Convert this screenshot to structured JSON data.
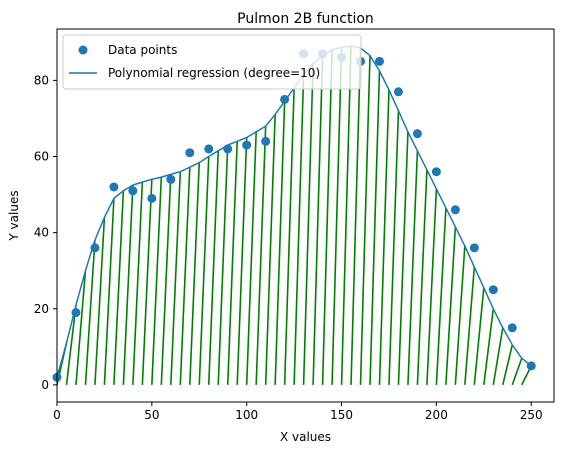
{
  "chart_data": {
    "type": "scatter",
    "title": "Pulmon 2B function",
    "xlabel": "X values",
    "ylabel": "Y values",
    "xlim": [
      0,
      262
    ],
    "ylim": [
      -4.5,
      93.5
    ],
    "xticks": [
      0,
      50,
      100,
      150,
      200,
      250
    ],
    "yticks": [
      0,
      20,
      40,
      60,
      80
    ],
    "legend_placement": "upper-left",
    "grid": false,
    "series": [
      {
        "name": "Data points",
        "kind": "scatter",
        "color": "#1f77b4",
        "x": [
          0,
          10,
          20,
          30,
          40,
          50,
          60,
          70,
          80,
          90,
          100,
          110,
          120,
          130,
          140,
          150,
          160,
          170,
          180,
          190,
          200,
          210,
          220,
          230,
          240,
          250
        ],
        "y": [
          2,
          19,
          36,
          52,
          51,
          49,
          54,
          61,
          62,
          62,
          63,
          64,
          75,
          87,
          87,
          86,
          85,
          85,
          77,
          66,
          56,
          46,
          36,
          25,
          15,
          5
        ]
      },
      {
        "name": "Polynomial regression (degree=10)",
        "kind": "line",
        "color": "#1f77b4",
        "x": [
          0,
          5,
          10,
          15,
          20,
          25,
          30,
          35,
          40,
          45,
          50,
          55,
          60,
          65,
          70,
          75,
          80,
          85,
          90,
          95,
          100,
          105,
          110,
          115,
          120,
          125,
          130,
          135,
          140,
          145,
          150,
          155,
          160,
          165,
          170,
          175,
          180,
          185,
          190,
          195,
          200,
          205,
          210,
          215,
          220,
          225,
          230,
          235,
          240,
          245,
          250
        ],
        "y": [
          2,
          11,
          21,
          30,
          38,
          44,
          49,
          51,
          52.5,
          53.3,
          54,
          54.6,
          55.3,
          56,
          57.2,
          58.4,
          60,
          61.5,
          63,
          64,
          65,
          66.5,
          68,
          71,
          74.5,
          78,
          81.5,
          84.5,
          86.5,
          88,
          88.7,
          89,
          88.5,
          86.5,
          82.5,
          77.5,
          72,
          66.5,
          61.5,
          56.5,
          51.5,
          46.5,
          41.5,
          36.5,
          31,
          25.5,
          20,
          15,
          10.5,
          7,
          5
        ]
      }
    ],
    "fill": {
      "color": "#008000",
      "style": "diagonal-hatch",
      "under": "Polynomial regression (degree=10)"
    }
  }
}
